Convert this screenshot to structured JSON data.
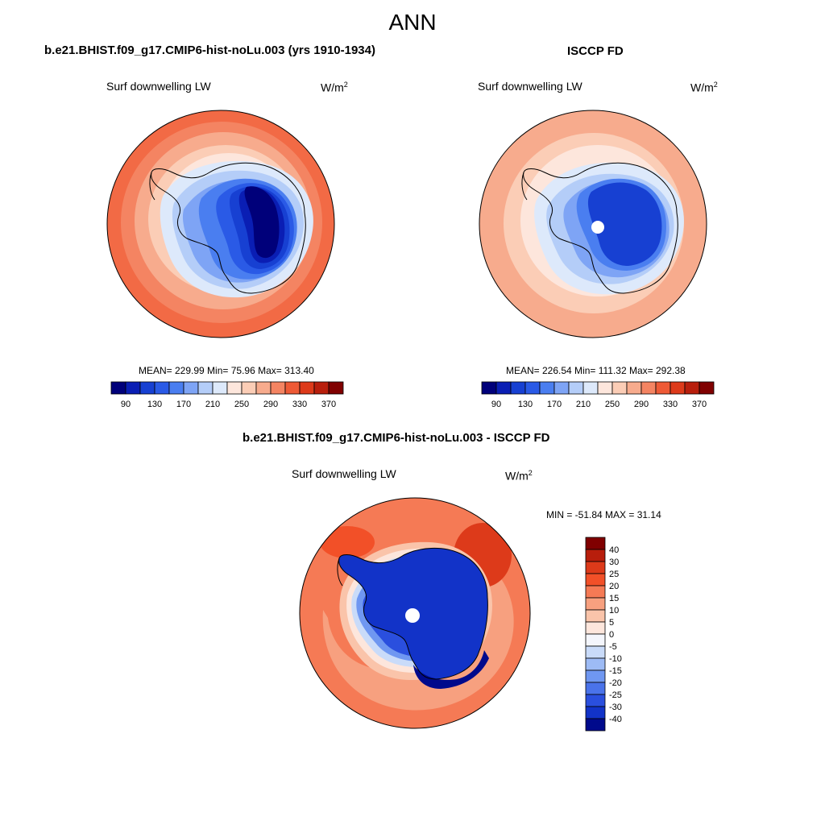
{
  "title": "ANN",
  "panels": [
    {
      "case": "b.e21.BHIST.f09_g17.CMIP6-hist-noLu.003 (yrs 1910-1934)",
      "variable": "Surf downwelling LW",
      "units_base": "W/m",
      "units_exp": "2",
      "stats": "MEAN= 229.99  Min=  75.96  Max= 313.40",
      "colorbar_labels": [
        "90",
        "130",
        "170",
        "210",
        "250",
        "290",
        "330",
        "370"
      ]
    },
    {
      "case": "ISCCP FD",
      "variable": "Surf downwelling LW",
      "units_base": "W/m",
      "units_exp": "2",
      "stats": "MEAN= 226.54  Min= 111.32  Max= 292.38",
      "colorbar_labels": [
        "90",
        "130",
        "170",
        "210",
        "250",
        "290",
        "330",
        "370"
      ]
    },
    {
      "case": "b.e21.BHIST.f09_g17.CMIP6-hist-noLu.003 - ISCCP FD",
      "variable": "Surf downwelling LW",
      "units_base": "W/m",
      "units_exp": "2",
      "stats": "MIN = -51.84 MAX =  31.14",
      "colorbar_labels": [
        "40",
        "30",
        "25",
        "20",
        "15",
        "10",
        "5",
        "0",
        "-5",
        "-10",
        "-15",
        "-20",
        "-25",
        "-30",
        "-40"
      ]
    }
  ],
  "colors": {
    "abs_scale": [
      "#00007a",
      "#0a1eb4",
      "#1740d2",
      "#2a5ae6",
      "#4a7ef0",
      "#7ea4f5",
      "#b4cdf8",
      "#dde9fb",
      "#fde6dc",
      "#fbcdb6",
      "#f7ab8d",
      "#f48462",
      "#ee5a36",
      "#dd3a1a",
      "#b81e0c",
      "#800000"
    ],
    "diff_scale": [
      "#800000",
      "#b81e0c",
      "#dd3a1a",
      "#f25028",
      "#f57a55",
      "#f7a07f",
      "#fac4aa",
      "#fde6dc",
      "#f4f6fc",
      "#c9dbf9",
      "#9dbbf5",
      "#6f97f1",
      "#4a73ea",
      "#2a4fde",
      "#1233c8",
      "#000a8c"
    ]
  }
}
